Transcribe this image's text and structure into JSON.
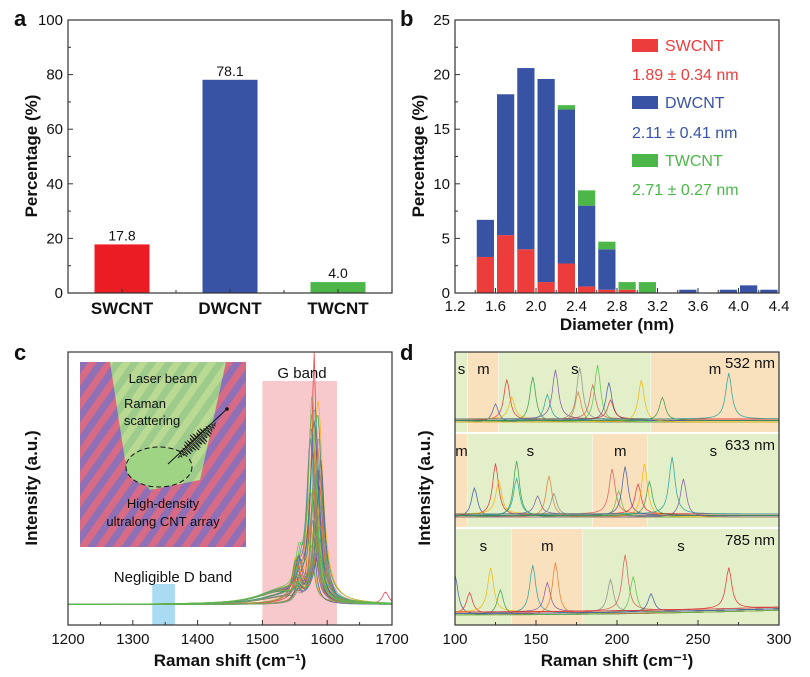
{
  "chart_data": [
    {
      "panel": "a",
      "type": "bar",
      "title": "",
      "xlabel": "",
      "ylabel": "Percentage (%)",
      "ylim": [
        0,
        100
      ],
      "yticks": [
        0,
        20,
        40,
        60,
        80,
        100
      ],
      "categories": [
        "SWCNT",
        "DWCNT",
        "TWCNT"
      ],
      "values": [
        17.8,
        78.1,
        4.0
      ],
      "data_labels": [
        "17.8",
        "78.1",
        "4.0"
      ],
      "colors": [
        "#ec1c24",
        "#3953a4",
        "#4cb748"
      ],
      "grid": false
    },
    {
      "panel": "b",
      "type": "bar",
      "stacked": true,
      "title": "",
      "xlabel": "Diameter (nm)",
      "ylabel": "Percentage (%)",
      "xlim": [
        1.2,
        4.4
      ],
      "ylim": [
        0,
        25
      ],
      "xticks": [
        "1.2",
        "1.6",
        "2.0",
        "2.4",
        "2.8",
        "3.2",
        "3.6",
        "4.0",
        "4.4"
      ],
      "yticks": [
        0,
        5,
        10,
        15,
        20,
        25
      ],
      "bin_centers": [
        1.5,
        1.7,
        1.9,
        2.1,
        2.3,
        2.5,
        2.7,
        2.9,
        3.1,
        3.5,
        3.9,
        4.1,
        4.3
      ],
      "bin_width": 0.2,
      "series": [
        {
          "name": "SWCNT",
          "color": "#ec3c3c",
          "values": [
            3.3,
            5.3,
            4.0,
            1.0,
            2.7,
            0.6,
            0.3,
            0.3,
            0,
            0,
            0,
            0,
            0
          ]
        },
        {
          "name": "DWCNT",
          "color": "#3953a4",
          "values": [
            3.4,
            12.9,
            16.6,
            18.6,
            14.1,
            7.4,
            3.7,
            0,
            0,
            0.3,
            0.3,
            0.7,
            0.3
          ]
        },
        {
          "name": "TWCNT",
          "color": "#4cb748",
          "values": [
            0,
            0,
            0,
            0,
            0.4,
            1.4,
            0.7,
            0.7,
            1.0,
            0,
            0,
            0,
            0
          ]
        }
      ],
      "legend": {
        "position": "top-right",
        "entries": [
          {
            "label": "SWCNT",
            "stat": "1.89 ± 0.34 nm",
            "color": "#ec3c3c"
          },
          {
            "label": "DWCNT",
            "stat": "2.11 ± 0.41 nm",
            "color": "#3953a4"
          },
          {
            "label": "TWCNT",
            "stat": "2.71 ± 0.27 nm",
            "color": "#4cb748"
          }
        ]
      },
      "grid": false
    },
    {
      "panel": "c",
      "type": "line",
      "title": "",
      "xlabel": "Raman shift (cm⁻¹)",
      "ylabel": "Intensity (a.u.)",
      "xlim": [
        1200,
        1700
      ],
      "xticks": [
        "1200",
        "1300",
        "1400",
        "1500",
        "1600",
        "1700"
      ],
      "annotations": [
        "G band",
        "Negligible D band"
      ],
      "shaded_regions": [
        {
          "label": "G band",
          "range": [
            1500,
            1615
          ],
          "color": "#f7c9cc"
        },
        {
          "label": "Negligible D band",
          "range": [
            1330,
            1365
          ],
          "color": "#a9dcf3"
        }
      ],
      "peaks": {
        "G_band_center": 1580,
        "D_band_center": 1350,
        "shoulder": 1555,
        "minor": 1690
      },
      "inset": {
        "labels": [
          "Laser beam",
          "Raman scattering",
          "High-density ultralong CNT array"
        ]
      },
      "series_colors": [
        "#e8262d",
        "#2b9a3f",
        "#f4b400",
        "#3953a4",
        "#1a9fa0",
        "#7b4fa0",
        "#e8762d",
        "#888888",
        "#55c04a"
      ],
      "grid": false
    },
    {
      "panel": "d",
      "type": "line",
      "title": "",
      "xlabel": "Raman shift (cm⁻¹)",
      "ylabel": "Intensity (a.u.)",
      "xlim": [
        100,
        300
      ],
      "xticks": [
        "100",
        "150",
        "200",
        "250",
        "300"
      ],
      "subpanels": [
        {
          "wavelength": "532 nm",
          "regions": [
            {
              "label": "s",
              "range": [
                100,
                108
              ],
              "type": "s"
            },
            {
              "label": "m",
              "range": [
                108,
                127
              ],
              "type": "m"
            },
            {
              "label": "s",
              "range": [
                127,
                221
              ],
              "type": "s"
            },
            {
              "label": "m",
              "range": [
                221,
                300
              ],
              "type": "m"
            }
          ],
          "peaks": [
            125,
            132,
            135,
            148,
            157,
            162,
            176,
            177,
            185,
            188,
            195,
            196,
            215,
            228,
            269
          ]
        },
        {
          "wavelength": "633 nm",
          "regions": [
            {
              "label": "m",
              "range": [
                100,
                108
              ],
              "type": "m"
            },
            {
              "label": "s",
              "range": [
                108,
                185
              ],
              "type": "s"
            },
            {
              "label": "m",
              "range": [
                185,
                219
              ],
              "type": "m"
            },
            {
              "label": "s",
              "range": [
                219,
                300
              ],
              "type": "s"
            }
          ],
          "peaks": [
            112,
            125,
            127,
            138,
            138,
            151,
            158,
            161,
            197,
            201,
            205,
            213,
            217,
            220,
            234,
            241
          ]
        },
        {
          "wavelength": "785 nm",
          "regions": [
            {
              "label": "s",
              "range": [
                100,
                135
              ],
              "type": "s"
            },
            {
              "label": "m",
              "range": [
                135,
                179
              ],
              "type": "m"
            },
            {
              "label": "s",
              "range": [
                179,
                300
              ],
              "type": "s"
            }
          ],
          "peaks": [
            100,
            109,
            122,
            128,
            148,
            157,
            162,
            196,
            205,
            210,
            221,
            269
          ]
        }
      ],
      "region_colors": {
        "s": "#e3efc8",
        "m": "#f9e1bd"
      },
      "grid": false
    }
  ],
  "panel_letters": [
    "a",
    "b",
    "c",
    "d"
  ]
}
